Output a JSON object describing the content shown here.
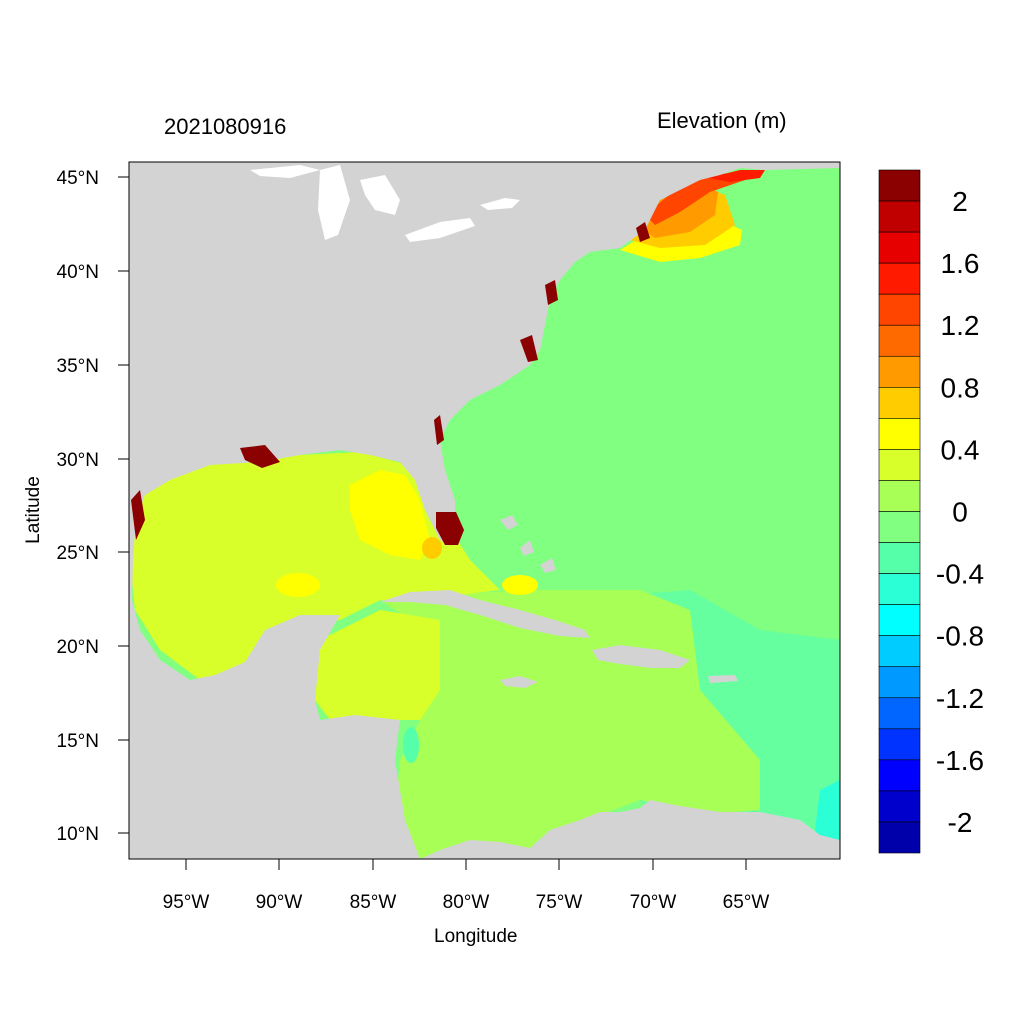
{
  "map": {
    "title_left": "2021080916",
    "title_right": "Elevation (m)",
    "xlabel": "Longitude",
    "ylabel": "Latitude",
    "x_ticks": [
      "95°W",
      "90°W",
      "85°W",
      "80°W",
      "75°W",
      "70°W",
      "65°W"
    ],
    "y_ticks": [
      "45°N",
      "40°N",
      "35°N",
      "30°N",
      "25°N",
      "20°N",
      "15°N",
      "10°N"
    ],
    "colorbar_labels": [
      "2",
      "1.6",
      "1.2",
      "0.8",
      "0.4",
      "0",
      "-0.4",
      "-0.8",
      "-1.2",
      "-1.6",
      "-2"
    ],
    "colorbar_colors": [
      "#8b0000",
      "#c00000",
      "#e60000",
      "#ff1a00",
      "#ff4500",
      "#ff6a00",
      "#ff9a00",
      "#ffcc00",
      "#ffff00",
      "#d9ff2a",
      "#a8ff55",
      "#80ff80",
      "#55ffaa",
      "#2affd5",
      "#00ffff",
      "#00ccff",
      "#0099ff",
      "#0066ff",
      "#0033ff",
      "#0000ff",
      "#0000cc",
      "#0000aa"
    ],
    "land_color": "#d3d3d3",
    "ocean_color": "#80ff80"
  }
}
